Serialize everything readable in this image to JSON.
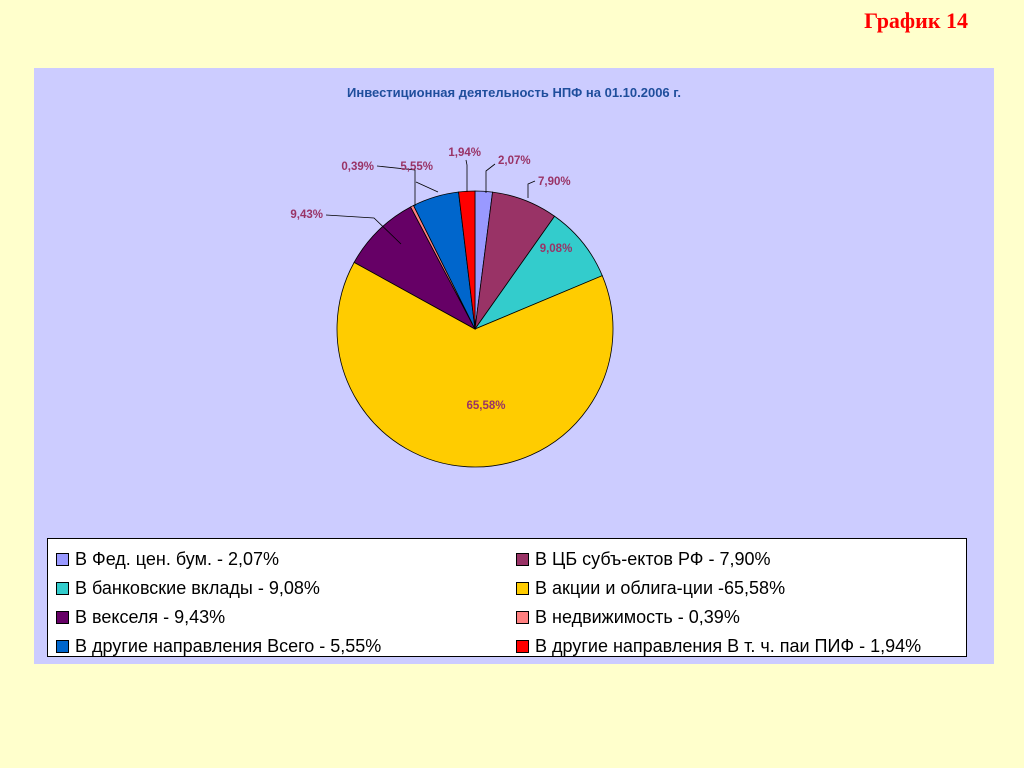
{
  "slide_label": "График 14",
  "chart_data": {
    "type": "pie",
    "title": "Инвестиционная деятельность НПФ на 01.10.2006 г.",
    "slices": [
      {
        "legend": "В Фед. цен. бум. - 2,07%",
        "value": 2.07,
        "label": "2,07%",
        "color": "#9999ff"
      },
      {
        "legend": "В ЦБ субъ-ектов РФ - 7,90%",
        "value": 7.9,
        "label": "7,90%",
        "color": "#993366"
      },
      {
        "legend": "В банковские вклады - 9,08%",
        "value": 9.08,
        "label": "9,08%",
        "color": "#33cccc"
      },
      {
        "legend": "В акции и облига-ции -65,58%",
        "value": 65.58,
        "label": "65,58%",
        "color": "#ffcc00"
      },
      {
        "legend": "В векселя - 9,43%",
        "value": 9.43,
        "label": "9,43%",
        "color": "#660066"
      },
      {
        "legend": "В недвижимость - 0,39%",
        "value": 0.39,
        "label": "0,39%",
        "color": "#ff8080"
      },
      {
        "legend": "В другие направления Всего - 5,55%",
        "value": 5.55,
        "label": "5,55%",
        "color": "#0066cc"
      },
      {
        "legend": "В другие направления В т. ч. паи ПИФ - 1,94%",
        "value": 1.94,
        "label": "1,94%",
        "color": "#ff0000"
      }
    ],
    "label_color": "#993366",
    "legend_placement": "bottom"
  }
}
